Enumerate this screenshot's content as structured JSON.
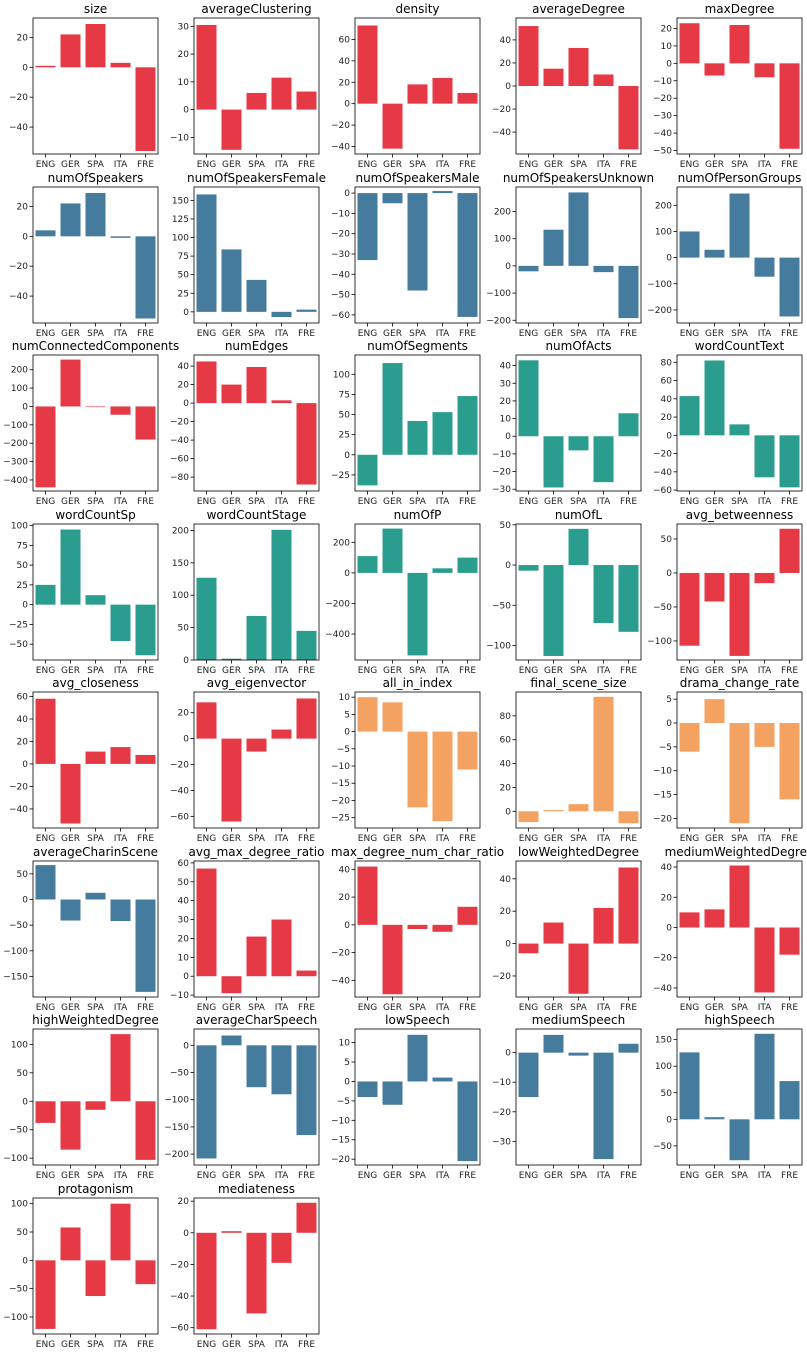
{
  "colors": {
    "red": "#e63946",
    "blue": "#457b9d",
    "teal": "#2a9d8f",
    "orange": "#f4a261"
  },
  "chart_data": [
    {
      "type": "bar",
      "title": "size",
      "categories": [
        "ENG",
        "GER",
        "SPA",
        "ITA",
        "FRE"
      ],
      "values": [
        1,
        22,
        29,
        3,
        -56
      ],
      "ylim": [
        -58,
        33
      ],
      "yticks": [
        -40,
        -20,
        0,
        20
      ],
      "color": "red"
    },
    {
      "type": "bar",
      "title": "averageClustering",
      "categories": [
        "ENG",
        "GER",
        "SPA",
        "ITA",
        "FRE"
      ],
      "values": [
        30.5,
        -14.5,
        6,
        11.5,
        6.5
      ],
      "ylim": [
        -16,
        33
      ],
      "yticks": [
        -10,
        0,
        10,
        20,
        30
      ],
      "color": "red"
    },
    {
      "type": "bar",
      "title": "density",
      "categories": [
        "ENG",
        "GER",
        "SPA",
        "ITA",
        "FRE"
      ],
      "values": [
        73,
        -42,
        18,
        24,
        10
      ],
      "ylim": [
        -47,
        80
      ],
      "yticks": [
        -40,
        -20,
        0,
        20,
        40,
        60
      ],
      "color": "red"
    },
    {
      "type": "bar",
      "title": "averageDegree",
      "categories": [
        "ENG",
        "GER",
        "SPA",
        "ITA",
        "FRE"
      ],
      "values": [
        52,
        15,
        33,
        10,
        -55
      ],
      "ylim": [
        -59,
        59
      ],
      "yticks": [
        -40,
        -20,
        0,
        20,
        40
      ],
      "color": "red"
    },
    {
      "type": "bar",
      "title": "maxDegree",
      "categories": [
        "ENG",
        "GER",
        "SPA",
        "ITA",
        "FRE"
      ],
      "values": [
        23,
        -7,
        22,
        -8,
        -49
      ],
      "ylim": [
        -52,
        26
      ],
      "yticks": [
        -50,
        -40,
        -30,
        -20,
        -10,
        0,
        10,
        20
      ],
      "color": "red"
    },
    {
      "type": "bar",
      "title": "numOfSpeakers",
      "categories": [
        "ENG",
        "GER",
        "SPA",
        "ITA",
        "FRE"
      ],
      "values": [
        4,
        22,
        29,
        -1,
        -55
      ],
      "ylim": [
        -58,
        33
      ],
      "yticks": [
        -40,
        -20,
        0,
        20
      ],
      "color": "blue"
    },
    {
      "type": "bar",
      "title": "numOfSpeakersFemale",
      "categories": [
        "ENG",
        "GER",
        "SPA",
        "ITA",
        "FRE"
      ],
      "values": [
        158,
        84,
        43,
        -7,
        3
      ],
      "ylim": [
        -15,
        168
      ],
      "yticks": [
        0,
        25,
        50,
        75,
        100,
        125,
        150
      ],
      "color": "blue"
    },
    {
      "type": "bar",
      "title": "numOfSpeakersMale",
      "categories": [
        "ENG",
        "GER",
        "SPA",
        "ITA",
        "FRE"
      ],
      "values": [
        -33,
        -5,
        -48,
        1,
        -61
      ],
      "ylim": [
        -64,
        3
      ],
      "yticks": [
        -60,
        -50,
        -40,
        -30,
        -20,
        -10,
        0
      ],
      "color": "blue"
    },
    {
      "type": "bar",
      "title": "numOfSpeakersUnknown",
      "categories": [
        "ENG",
        "GER",
        "SPA",
        "ITA",
        "FRE"
      ],
      "values": [
        -20,
        133,
        270,
        -23,
        -192
      ],
      "ylim": [
        -210,
        290
      ],
      "yticks": [
        -200,
        -100,
        0,
        100,
        200
      ],
      "color": "blue"
    },
    {
      "type": "bar",
      "title": "numOfPersonGroups",
      "categories": [
        "ENG",
        "GER",
        "SPA",
        "ITA",
        "FRE"
      ],
      "values": [
        100,
        30,
        245,
        -73,
        -225
      ],
      "ylim": [
        -250,
        270
      ],
      "yticks": [
        -200,
        -100,
        0,
        100,
        200
      ],
      "color": "blue"
    },
    {
      "type": "bar",
      "title": "numConnectedComponents",
      "categories": [
        "ENG",
        "GER",
        "SPA",
        "ITA",
        "FRE"
      ],
      "values": [
        -440,
        255,
        0,
        -45,
        -180
      ],
      "ylim": [
        -460,
        280
      ],
      "yticks": [
        -400,
        -300,
        -200,
        -100,
        0,
        100,
        200
      ],
      "color": "red"
    },
    {
      "type": "bar",
      "title": "numEdges",
      "categories": [
        "ENG",
        "GER",
        "SPA",
        "ITA",
        "FRE"
      ],
      "values": [
        45,
        20,
        39,
        3,
        -88
      ],
      "ylim": [
        -95,
        52
      ],
      "yticks": [
        -80,
        -60,
        -40,
        -20,
        0,
        20,
        40
      ],
      "color": "red"
    },
    {
      "type": "bar",
      "title": "numOfSegments",
      "categories": [
        "ENG",
        "GER",
        "SPA",
        "ITA",
        "FRE"
      ],
      "values": [
        -38,
        114,
        42,
        53,
        73
      ],
      "ylim": [
        -45,
        124
      ],
      "yticks": [
        -25,
        0,
        25,
        50,
        75,
        100
      ],
      "color": "teal"
    },
    {
      "type": "bar",
      "title": "numOfActs",
      "categories": [
        "ENG",
        "GER",
        "SPA",
        "ITA",
        "FRE"
      ],
      "values": [
        43,
        -29,
        -8,
        -26,
        13
      ],
      "ylim": [
        -31,
        46
      ],
      "yticks": [
        -30,
        -20,
        -10,
        0,
        10,
        20,
        30,
        40
      ],
      "color": "teal"
    },
    {
      "type": "bar",
      "title": "wordCountText",
      "categories": [
        "ENG",
        "GER",
        "SPA",
        "ITA",
        "FRE"
      ],
      "values": [
        43,
        82,
        12,
        -46,
        -57
      ],
      "ylim": [
        -61,
        88
      ],
      "yticks": [
        -60,
        -40,
        -20,
        0,
        20,
        40,
        60,
        80
      ],
      "color": "teal"
    },
    {
      "type": "bar",
      "title": "wordCountSp",
      "categories": [
        "ENG",
        "GER",
        "SPA",
        "ITA",
        "FRE"
      ],
      "values": [
        25,
        95,
        12,
        -46,
        -64
      ],
      "ylim": [
        -70,
        102
      ],
      "yticks": [
        -50,
        -25,
        0,
        25,
        50,
        75,
        100
      ],
      "color": "teal"
    },
    {
      "type": "bar",
      "title": "wordCountStage",
      "categories": [
        "ENG",
        "GER",
        "SPA",
        "ITA",
        "FRE"
      ],
      "values": [
        127,
        2,
        68,
        201,
        45
      ],
      "ylim": [
        0,
        210
      ],
      "yticks": [
        0,
        50,
        100,
        150,
        200
      ],
      "color": "teal"
    },
    {
      "type": "bar",
      "title": "numOfP",
      "categories": [
        "ENG",
        "GER",
        "SPA",
        "ITA",
        "FRE"
      ],
      "values": [
        110,
        290,
        -540,
        30,
        100
      ],
      "ylim": [
        -570,
        320
      ],
      "yticks": [
        -400,
        -200,
        0,
        200
      ],
      "color": "teal"
    },
    {
      "type": "bar",
      "title": "numOfL",
      "categories": [
        "ENG",
        "GER",
        "SPA",
        "ITA",
        "FRE"
      ],
      "values": [
        -7,
        -113,
        45,
        -72,
        -83
      ],
      "ylim": [
        -118,
        51
      ],
      "yticks": [
        -100,
        -50,
        0,
        50
      ],
      "color": "teal"
    },
    {
      "type": "bar",
      "title": "avg_betweenness",
      "categories": [
        "ENG",
        "GER",
        "SPA",
        "ITA",
        "FRE"
      ],
      "values": [
        -107,
        -42,
        -122,
        -15,
        65
      ],
      "ylim": [
        -128,
        72
      ],
      "yticks": [
        -100,
        -50,
        0,
        50
      ],
      "color": "red"
    },
    {
      "type": "bar",
      "title": "avg_closeness",
      "categories": [
        "ENG",
        "GER",
        "SPA",
        "ITA",
        "FRE"
      ],
      "values": [
        58,
        -53,
        11,
        15,
        8
      ],
      "ylim": [
        -57,
        64
      ],
      "yticks": [
        -40,
        -20,
        0,
        20,
        40,
        60
      ],
      "color": "red"
    },
    {
      "type": "bar",
      "title": "avg_eigenvector",
      "categories": [
        "ENG",
        "GER",
        "SPA",
        "ITA",
        "FRE"
      ],
      "values": [
        28,
        -64,
        -10,
        7,
        31
      ],
      "ylim": [
        -69,
        36
      ],
      "yticks": [
        -60,
        -40,
        -20,
        0,
        20
      ],
      "color": "red"
    },
    {
      "type": "bar",
      "title": "all_in_index",
      "categories": [
        "ENG",
        "GER",
        "SPA",
        "ITA",
        "FRE"
      ],
      "values": [
        10,
        8.5,
        -22,
        -26,
        -11
      ],
      "ylim": [
        -28,
        11.5
      ],
      "yticks": [
        -25,
        -20,
        -15,
        -10,
        -5,
        0,
        5,
        10
      ],
      "color": "orange"
    },
    {
      "type": "bar",
      "title": "final_scene_size",
      "categories": [
        "ENG",
        "GER",
        "SPA",
        "ITA",
        "FRE"
      ],
      "values": [
        -9,
        1,
        6,
        96,
        -10
      ],
      "ylim": [
        -14,
        100
      ],
      "yticks": [
        0,
        20,
        40,
        60,
        80
      ],
      "color": "orange"
    },
    {
      "type": "bar",
      "title": "drama_change_rate",
      "categories": [
        "ENG",
        "GER",
        "SPA",
        "ITA",
        "FRE"
      ],
      "values": [
        -6,
        5,
        -21,
        -5,
        -16
      ],
      "ylim": [
        -22,
        6.5
      ],
      "yticks": [
        -20,
        -15,
        -10,
        -5,
        0,
        5
      ],
      "color": "orange"
    },
    {
      "type": "bar",
      "title": "averageCharinScene",
      "categories": [
        "ENG",
        "GER",
        "SPA",
        "ITA",
        "FRE"
      ],
      "values": [
        67,
        -41,
        13,
        -42,
        -180
      ],
      "ylim": [
        -190,
        75
      ],
      "yticks": [
        -150,
        -100,
        -50,
        0,
        50
      ],
      "color": "blue"
    },
    {
      "type": "bar",
      "title": "avg_max_degree_ratio",
      "categories": [
        "ENG",
        "GER",
        "SPA",
        "ITA",
        "FRE"
      ],
      "values": [
        57,
        -9,
        21,
        30,
        3
      ],
      "ylim": [
        -11,
        61
      ],
      "yticks": [
        -10,
        0,
        10,
        20,
        30,
        40,
        50,
        60
      ],
      "color": "red"
    },
    {
      "type": "bar",
      "title": "max_degree_num_char_ratio",
      "categories": [
        "ENG",
        "GER",
        "SPA",
        "ITA",
        "FRE"
      ],
      "values": [
        42,
        -50,
        -3,
        -5,
        13
      ],
      "ylim": [
        -52,
        46
      ],
      "yticks": [
        -40,
        -20,
        0,
        20,
        40
      ],
      "color": "red"
    },
    {
      "type": "bar",
      "title": "lowWeightedDegree",
      "categories": [
        "ENG",
        "GER",
        "SPA",
        "ITA",
        "FRE"
      ],
      "values": [
        -6,
        13,
        -31,
        22,
        47
      ],
      "ylim": [
        -33,
        51
      ],
      "yticks": [
        -20,
        0,
        20,
        40
      ],
      "color": "red"
    },
    {
      "type": "bar",
      "title": "mediumWeightedDegree",
      "categories": [
        "ENG",
        "GER",
        "SPA",
        "ITA",
        "FRE"
      ],
      "values": [
        10,
        12,
        41,
        -43,
        -18
      ],
      "ylim": [
        -46,
        44
      ],
      "yticks": [
        -40,
        -20,
        0,
        20,
        40
      ],
      "color": "red"
    },
    {
      "type": "bar",
      "title": "highWeightedDegree",
      "categories": [
        "ENG",
        "GER",
        "SPA",
        "ITA",
        "FRE"
      ],
      "values": [
        -38,
        -85,
        -15,
        118,
        -103
      ],
      "ylim": [
        -112,
        127
      ],
      "yticks": [
        -100,
        -50,
        0,
        50,
        100
      ],
      "color": "red"
    },
    {
      "type": "bar",
      "title": "averageCharSpeech",
      "categories": [
        "ENG",
        "GER",
        "SPA",
        "ITA",
        "FRE"
      ],
      "values": [
        -208,
        18,
        -77,
        -90,
        -165
      ],
      "ylim": [
        -220,
        30
      ],
      "yticks": [
        -200,
        -150,
        -100,
        -50,
        0
      ],
      "color": "blue"
    },
    {
      "type": "bar",
      "title": "lowSpeech",
      "categories": [
        "ENG",
        "GER",
        "SPA",
        "ITA",
        "FRE"
      ],
      "values": [
        -4,
        -6,
        12,
        1,
        -20.5
      ],
      "ylim": [
        -21.5,
        13.5
      ],
      "yticks": [
        -20,
        -15,
        -10,
        -5,
        0,
        5,
        10
      ],
      "color": "blue"
    },
    {
      "type": "bar",
      "title": "mediumSpeech",
      "categories": [
        "ENG",
        "GER",
        "SPA",
        "ITA",
        "FRE"
      ],
      "values": [
        -15,
        6,
        -1,
        -36,
        3
      ],
      "ylim": [
        -38,
        8
      ],
      "yticks": [
        -30,
        -20,
        -10,
        0
      ],
      "color": "blue"
    },
    {
      "type": "bar",
      "title": "highSpeech",
      "categories": [
        "ENG",
        "GER",
        "SPA",
        "ITA",
        "FRE"
      ],
      "values": [
        126,
        4,
        -77,
        161,
        72
      ],
      "ylim": [
        -86,
        170
      ],
      "yticks": [
        -50,
        0,
        50,
        100,
        150
      ],
      "color": "blue"
    },
    {
      "type": "bar",
      "title": "protagonism",
      "categories": [
        "ENG",
        "GER",
        "SPA",
        "ITA",
        "FRE"
      ],
      "values": [
        -121,
        58,
        -63,
        100,
        -42
      ],
      "ylim": [
        -130,
        110
      ],
      "yticks": [
        -100,
        -50,
        0,
        50,
        100
      ],
      "color": "red"
    },
    {
      "type": "bar",
      "title": "mediateness",
      "categories": [
        "ENG",
        "GER",
        "SPA",
        "ITA",
        "FRE"
      ],
      "values": [
        -61,
        1,
        -51,
        -19,
        19
      ],
      "ylim": [
        -64,
        22
      ],
      "yticks": [
        -60,
        -40,
        -20,
        0,
        20
      ],
      "color": "red"
    }
  ]
}
